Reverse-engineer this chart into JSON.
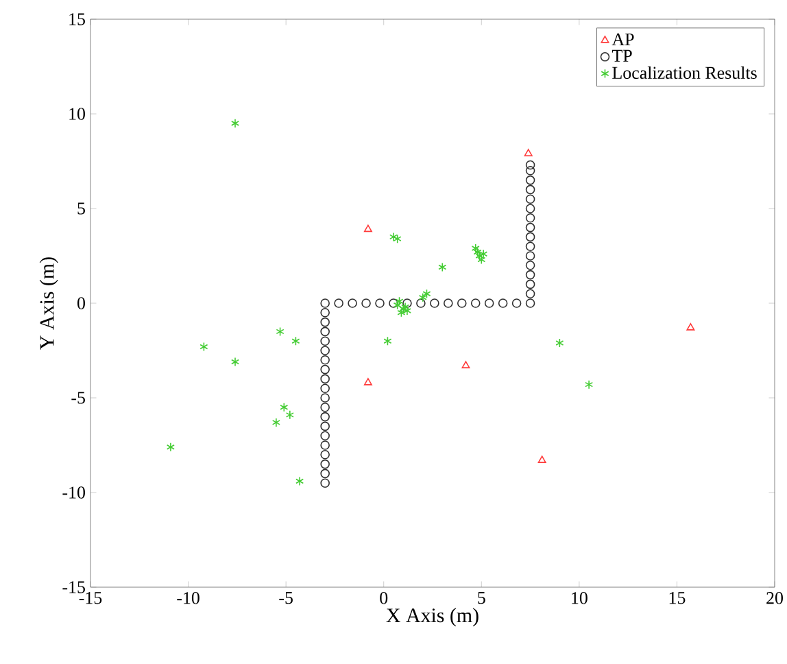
{
  "chart_data": {
    "type": "scatter",
    "xlabel": "X Axis (m)",
    "ylabel": "Y Axis (m)",
    "xlim": [
      -15,
      20
    ],
    "ylim": [
      -15,
      15
    ],
    "xticks": [
      -15,
      -10,
      -5,
      0,
      5,
      10,
      15,
      20
    ],
    "yticks": [
      -15,
      -10,
      -5,
      0,
      5,
      10,
      15
    ],
    "grid": false,
    "legend": "top right",
    "series": [
      {
        "name": "AP",
        "color": "#ff3b3b",
        "marker": "triangle",
        "x": [
          -0.8,
          7.4,
          -0.8,
          4.2,
          8.1,
          15.7
        ],
        "values": [
          3.9,
          7.9,
          -4.2,
          -3.3,
          -8.3,
          -1.3
        ]
      },
      {
        "name": "TP",
        "color": "#303030",
        "marker": "circle",
        "x": [
          -3,
          -2.3,
          -1.6,
          -0.9,
          -0.2,
          0.5,
          1.2,
          1.9,
          2.6,
          3.3,
          4.0,
          4.7,
          5.4,
          6.1,
          6.8,
          7.5,
          -3,
          -3,
          -3,
          -3,
          -3,
          -3,
          -3,
          -3,
          -3,
          -3,
          -3,
          -3,
          -3,
          -3,
          -3,
          -3,
          -3,
          -3,
          -3,
          7.5,
          7.5,
          7.5,
          7.5,
          7.5,
          7.5,
          7.5,
          7.5,
          7.5,
          7.5,
          7.5,
          7.5,
          7.5,
          7.5,
          7.5
        ],
        "values": [
          0,
          0,
          0,
          0,
          0,
          0,
          0,
          0,
          0,
          0,
          0,
          0,
          0,
          0,
          0,
          0,
          -0.5,
          -1.0,
          -1.5,
          -2.0,
          -2.5,
          -3.0,
          -3.5,
          -4.0,
          -4.5,
          -5.0,
          -5.5,
          -6.0,
          -6.5,
          -7.0,
          -7.5,
          -8.0,
          -8.5,
          -9.0,
          -9.5,
          0.5,
          1.0,
          1.5,
          2.0,
          2.5,
          3.0,
          3.5,
          4.0,
          4.5,
          5.0,
          5.5,
          6.0,
          6.5,
          7.0,
          7.3
        ]
      },
      {
        "name": "Localization Results",
        "color": "#44cc33",
        "marker": "cross",
        "x": [
          -7.6,
          0.5,
          0.7,
          3.0,
          4.8,
          4.7,
          4.9,
          5.0,
          5.1,
          2.2,
          2.0,
          0.7,
          1.0,
          1.2,
          0.9,
          1.1,
          0.8,
          -5.3,
          -4.5,
          -9.2,
          -7.6,
          0.2,
          -5.1,
          -4.8,
          -5.5,
          -10.9,
          -4.3,
          9.0,
          10.5
        ],
        "values": [
          9.5,
          3.5,
          3.4,
          1.9,
          2.7,
          2.9,
          2.5,
          2.3,
          2.6,
          0.5,
          0.3,
          -0.1,
          -0.3,
          -0.4,
          -0.5,
          -0.2,
          0.1,
          -1.5,
          -2.0,
          -2.3,
          -3.1,
          -2.0,
          -5.5,
          -5.9,
          -6.3,
          -7.6,
          -9.4,
          -2.1,
          -4.3
        ]
      }
    ]
  }
}
